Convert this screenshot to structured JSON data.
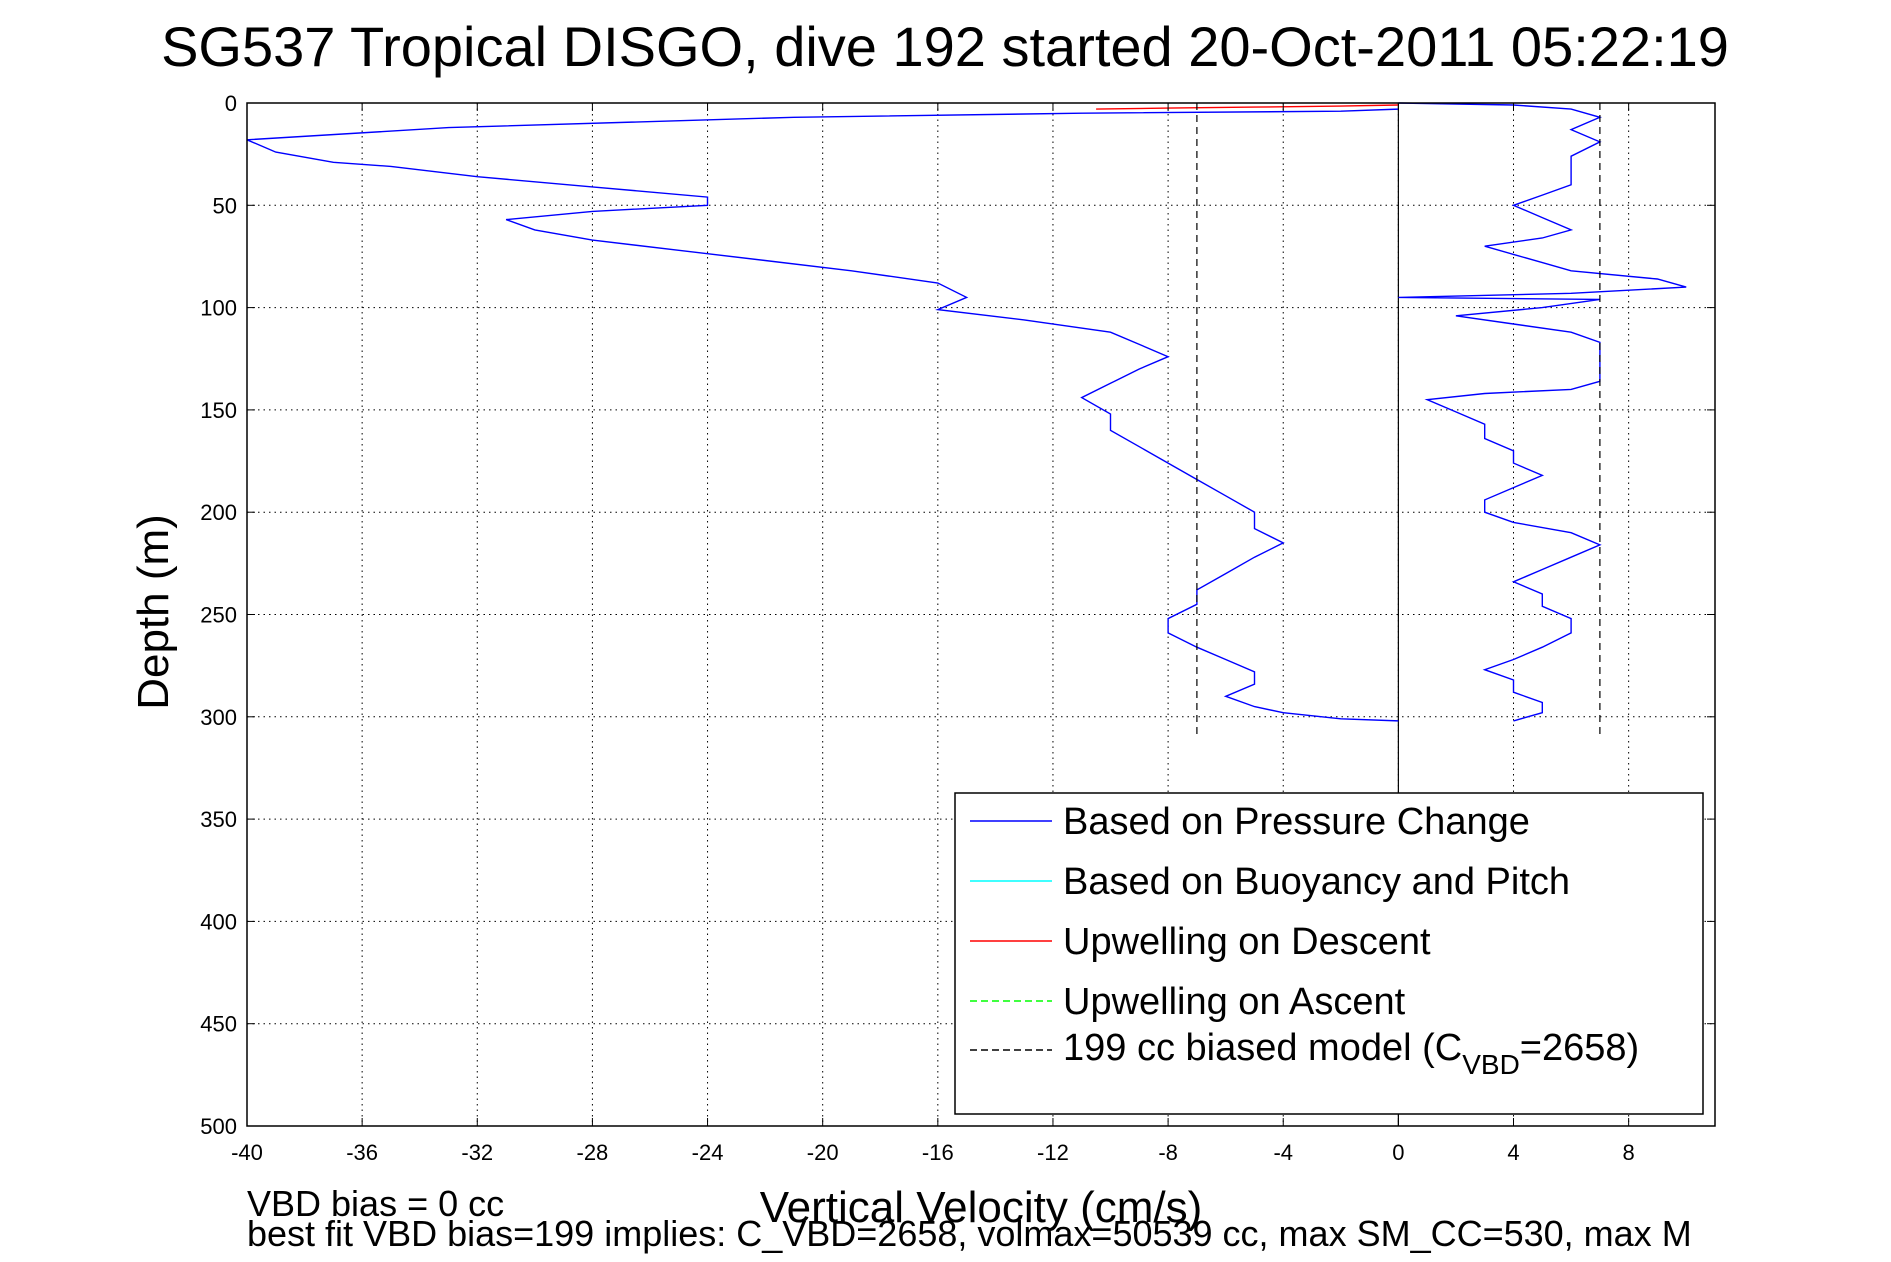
{
  "chart_data": {
    "type": "line",
    "title": "SG537 Tropical DISGO, dive 192 started 20-Oct-2011 05:22:19",
    "xlabel": "Vertical Velocity (cm/s)",
    "ylabel": "Depth (m)",
    "xlim": [
      -40,
      11
    ],
    "ylim": [
      0,
      500
    ],
    "y_reversed": true,
    "grid": true,
    "legend_placement": "bottom-right",
    "x_ticks": [
      -40,
      -36,
      -32,
      -28,
      -24,
      -20,
      -16,
      -12,
      -8,
      -4,
      0,
      4,
      8
    ],
    "x_tick_labels": [
      "-40",
      "-36",
      "-32",
      "-28",
      "-24",
      "-20",
      "-16",
      "-12",
      "-8",
      "-4",
      "0",
      "4",
      "8"
    ],
    "y_ticks": [
      0,
      50,
      100,
      150,
      200,
      250,
      300,
      350,
      400,
      450,
      500
    ],
    "y_tick_labels": [
      "0",
      "50",
      "100",
      "150",
      "200",
      "250",
      "300",
      "350",
      "400",
      "450",
      "500"
    ],
    "legend": {
      "entry1": "Based on Pressure Change",
      "entry2": "Based on Buoyancy and Pitch",
      "entry3": "Upwelling on Descent",
      "entry4": "Upwelling on Ascent",
      "entry5_main": "199 cc biased model (C",
      "entry5_sub": "VBD",
      "entry5_end": "=2658)"
    },
    "series": [
      {
        "name": "Based on Pressure Change",
        "color": "#0000ff",
        "segment": "descent",
        "points": [
          [
            0,
            3
          ],
          [
            -2,
            4
          ],
          [
            -11,
            5
          ],
          [
            -21,
            7
          ],
          [
            -33,
            12
          ],
          [
            -40,
            18
          ],
          [
            -39,
            24
          ],
          [
            -37,
            29
          ],
          [
            -35,
            31
          ],
          [
            -32,
            36
          ],
          [
            -28,
            41
          ],
          [
            -24,
            46
          ],
          [
            -24,
            50
          ],
          [
            -28,
            53
          ],
          [
            -31,
            57
          ],
          [
            -30,
            62
          ],
          [
            -28,
            67
          ],
          [
            -25,
            72
          ],
          [
            -22,
            77
          ],
          [
            -19,
            82
          ],
          [
            -16,
            88
          ],
          [
            -15,
            95
          ],
          [
            -16,
            101
          ],
          [
            -13,
            106
          ],
          [
            -10,
            112
          ],
          [
            -9,
            118
          ],
          [
            -8,
            124
          ],
          [
            -9,
            130
          ],
          [
            -10,
            137
          ],
          [
            -11,
            144
          ],
          [
            -10,
            152
          ],
          [
            -10,
            160
          ],
          [
            -9,
            168
          ],
          [
            -8,
            176
          ],
          [
            -7,
            184
          ],
          [
            -6,
            192
          ],
          [
            -5,
            200
          ],
          [
            -5,
            208
          ],
          [
            -4,
            215
          ],
          [
            -5,
            222
          ],
          [
            -6,
            230
          ],
          [
            -7,
            238
          ],
          [
            -7,
            245
          ],
          [
            -8,
            252
          ],
          [
            -8,
            259
          ],
          [
            -7,
            266
          ],
          [
            -6,
            272
          ],
          [
            -5,
            278
          ],
          [
            -5,
            284
          ],
          [
            -6,
            290
          ],
          [
            -5,
            295
          ],
          [
            -4,
            298
          ],
          [
            -2,
            301
          ],
          [
            0,
            302
          ]
        ]
      },
      {
        "name": "Based on Pressure Change",
        "color": "#0000ff",
        "segment": "ascent",
        "points": [
          [
            4,
            302
          ],
          [
            5,
            298
          ],
          [
            5,
            293
          ],
          [
            4,
            288
          ],
          [
            4,
            282
          ],
          [
            3,
            277
          ],
          [
            4,
            272
          ],
          [
            5,
            266
          ],
          [
            6,
            259
          ],
          [
            6,
            252
          ],
          [
            5,
            246
          ],
          [
            5,
            240
          ],
          [
            4,
            234
          ],
          [
            5,
            228
          ],
          [
            6,
            222
          ],
          [
            7,
            216
          ],
          [
            6,
            210
          ],
          [
            4,
            205
          ],
          [
            3,
            200
          ],
          [
            3,
            194
          ],
          [
            4,
            188
          ],
          [
            5,
            182
          ],
          [
            4,
            176
          ],
          [
            4,
            170
          ],
          [
            3,
            164
          ],
          [
            3,
            157
          ],
          [
            2,
            151
          ],
          [
            1,
            145
          ],
          [
            3,
            142
          ],
          [
            6,
            140
          ],
          [
            7,
            136
          ],
          [
            7,
            130
          ],
          [
            7,
            124
          ],
          [
            7,
            117
          ],
          [
            6,
            112
          ],
          [
            4,
            108
          ],
          [
            2,
            104
          ],
          [
            5,
            100
          ],
          [
            7,
            96
          ],
          [
            0,
            95
          ],
          [
            6,
            93
          ],
          [
            10,
            90
          ],
          [
            9,
            86
          ],
          [
            6,
            82
          ],
          [
            5,
            78
          ],
          [
            4,
            74
          ],
          [
            3,
            70
          ],
          [
            5,
            66
          ],
          [
            6,
            62
          ],
          [
            5,
            56
          ],
          [
            4,
            50
          ],
          [
            5,
            45
          ],
          [
            6,
            40
          ],
          [
            6,
            33
          ],
          [
            6,
            26
          ],
          [
            7,
            19
          ],
          [
            6,
            13
          ],
          [
            7,
            7
          ],
          [
            6,
            3
          ],
          [
            4,
            1
          ],
          [
            0,
            0
          ]
        ]
      },
      {
        "name": "Upwelling on Descent",
        "color": "#ff0000",
        "segment": "descent",
        "points": [
          [
            -10.5,
            3
          ],
          [
            -8,
            2.5
          ],
          [
            -5,
            2
          ],
          [
            -2,
            1.5
          ],
          [
            0,
            1
          ]
        ]
      },
      {
        "name": "199 cc biased model (C_VBD=2658)",
        "color": "#000000",
        "dashed": true,
        "segment": "descent",
        "points": [
          [
            -7,
            0
          ],
          [
            -7,
            310
          ]
        ]
      },
      {
        "name": "199 cc biased model (C_VBD=2658)",
        "color": "#000000",
        "dashed": true,
        "segment": "ascent",
        "points": [
          [
            7,
            0
          ],
          [
            7,
            310
          ]
        ]
      }
    ],
    "reference_line_x": 0
  },
  "footer": {
    "line1": "VBD bias = 0 cc",
    "line2": "best fit VBD bias=199 implies: C_VBD=2658, volmax=50539 cc, max SM_CC=530, max M"
  }
}
